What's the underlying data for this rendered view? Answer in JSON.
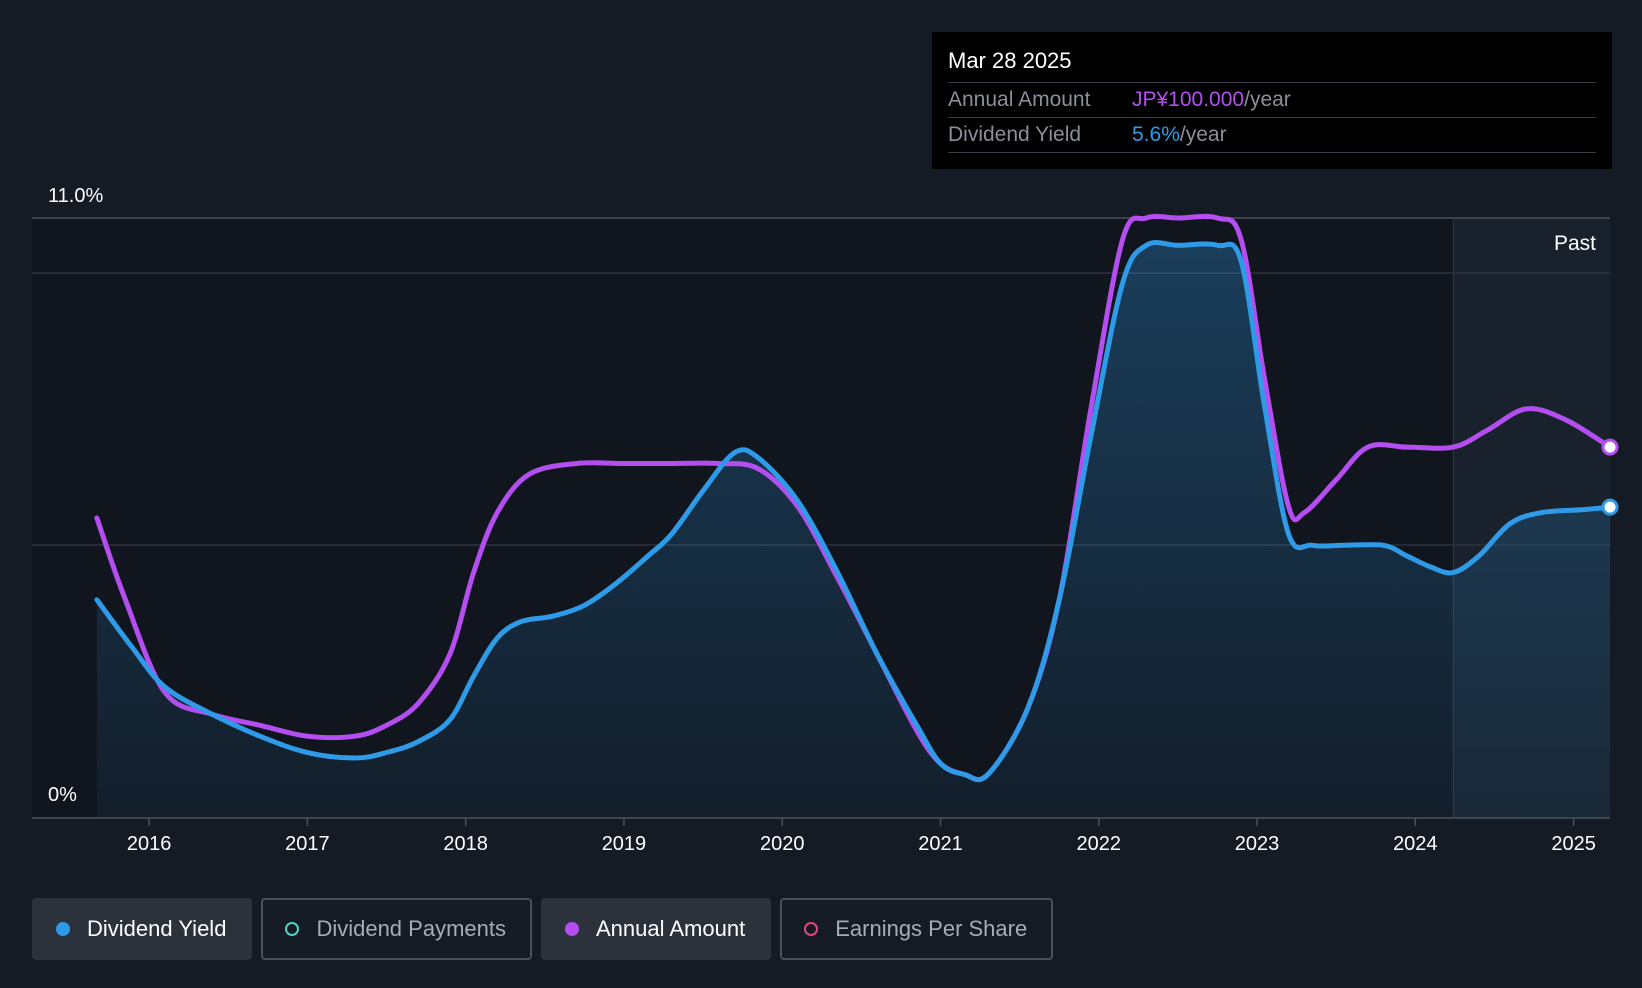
{
  "tooltip": {
    "date": "Mar 28 2025",
    "annual_label": "Annual Amount",
    "annual_value": "JP¥100.000",
    "annual_unit": "/year",
    "yield_label": "Dividend Yield",
    "yield_value": "5.6%",
    "yield_unit": "/year"
  },
  "legend": [
    {
      "label": "Dividend Yield",
      "color": "#2f9ae8",
      "active": true,
      "filled": true
    },
    {
      "label": "Dividend Payments",
      "color": "#4fd1c5",
      "active": false,
      "filled": false
    },
    {
      "label": "Annual Amount",
      "color": "#b44ef0",
      "active": true,
      "filled": true
    },
    {
      "label": "Earnings Per Share",
      "color": "#e0457b",
      "active": false,
      "filled": false
    }
  ],
  "chart_data": {
    "type": "line",
    "y_tick_labels": [
      "11.0%",
      "0%"
    ],
    "ylim": [
      0,
      11.0
    ],
    "xlim": [
      2015.26,
      2025.23
    ],
    "x_tick_labels": [
      "2016",
      "2017",
      "2018",
      "2019",
      "2020",
      "2021",
      "2022",
      "2023",
      "2024",
      "2025"
    ],
    "past_label": "Past",
    "past_start": 2024.24,
    "series": [
      {
        "name": "Dividend Yield",
        "color": "#2f9ae8",
        "points": [
          [
            2015.67,
            4.0
          ],
          [
            2015.9,
            3.1
          ],
          [
            2016.1,
            2.4
          ],
          [
            2016.4,
            1.9
          ],
          [
            2016.7,
            1.5
          ],
          [
            2017.0,
            1.2
          ],
          [
            2017.3,
            1.1
          ],
          [
            2017.5,
            1.2
          ],
          [
            2017.7,
            1.4
          ],
          [
            2017.9,
            1.8
          ],
          [
            2018.05,
            2.6
          ],
          [
            2018.2,
            3.3
          ],
          [
            2018.35,
            3.6
          ],
          [
            2018.55,
            3.7
          ],
          [
            2018.75,
            3.9
          ],
          [
            2018.95,
            4.3
          ],
          [
            2019.15,
            4.8
          ],
          [
            2019.3,
            5.2
          ],
          [
            2019.5,
            6.0
          ],
          [
            2019.7,
            6.7
          ],
          [
            2019.85,
            6.6
          ],
          [
            2020.1,
            5.8
          ],
          [
            2020.35,
            4.5
          ],
          [
            2020.6,
            3.0
          ],
          [
            2020.85,
            1.7
          ],
          [
            2021.0,
            1.0
          ],
          [
            2021.15,
            0.8
          ],
          [
            2021.3,
            0.8
          ],
          [
            2021.55,
            2.0
          ],
          [
            2021.75,
            4.0
          ],
          [
            2021.95,
            7.0
          ],
          [
            2022.15,
            9.8
          ],
          [
            2022.3,
            10.5
          ],
          [
            2022.5,
            10.5
          ],
          [
            2022.75,
            10.5
          ],
          [
            2022.9,
            10.2
          ],
          [
            2023.05,
            7.5
          ],
          [
            2023.2,
            5.2
          ],
          [
            2023.35,
            5.0
          ],
          [
            2023.55,
            5.0
          ],
          [
            2023.8,
            5.0
          ],
          [
            2023.95,
            4.8
          ],
          [
            2024.1,
            4.6
          ],
          [
            2024.24,
            4.5
          ],
          [
            2024.4,
            4.8
          ],
          [
            2024.6,
            5.4
          ],
          [
            2024.8,
            5.6
          ],
          [
            2025.05,
            5.65
          ],
          [
            2025.23,
            5.7
          ]
        ]
      },
      {
        "name": "Annual Amount",
        "color": "#b44ef0",
        "points": [
          [
            2015.67,
            5.5
          ],
          [
            2015.85,
            4.0
          ],
          [
            2016.1,
            2.3
          ],
          [
            2016.4,
            1.9
          ],
          [
            2016.7,
            1.7
          ],
          [
            2017.0,
            1.5
          ],
          [
            2017.3,
            1.5
          ],
          [
            2017.5,
            1.7
          ],
          [
            2017.7,
            2.1
          ],
          [
            2017.9,
            3.0
          ],
          [
            2018.05,
            4.5
          ],
          [
            2018.2,
            5.6
          ],
          [
            2018.4,
            6.3
          ],
          [
            2018.7,
            6.5
          ],
          [
            2019.0,
            6.5
          ],
          [
            2019.3,
            6.5
          ],
          [
            2019.6,
            6.5
          ],
          [
            2019.85,
            6.4
          ],
          [
            2020.1,
            5.7
          ],
          [
            2020.35,
            4.4
          ],
          [
            2020.6,
            3.0
          ],
          [
            2020.85,
            1.6
          ],
          [
            2021.0,
            1.0
          ],
          [
            2021.15,
            0.8
          ],
          [
            2021.3,
            0.8
          ],
          [
            2021.55,
            2.0
          ],
          [
            2021.75,
            4.0
          ],
          [
            2021.95,
            7.5
          ],
          [
            2022.15,
            10.6
          ],
          [
            2022.3,
            11.0
          ],
          [
            2022.5,
            11.0
          ],
          [
            2022.75,
            11.0
          ],
          [
            2022.9,
            10.6
          ],
          [
            2023.05,
            8.0
          ],
          [
            2023.2,
            5.7
          ],
          [
            2023.3,
            5.6
          ],
          [
            2023.5,
            6.2
          ],
          [
            2023.7,
            6.8
          ],
          [
            2023.95,
            6.8
          ],
          [
            2024.24,
            6.8
          ],
          [
            2024.45,
            7.1
          ],
          [
            2024.7,
            7.5
          ],
          [
            2024.95,
            7.3
          ],
          [
            2025.23,
            6.8
          ]
        ]
      }
    ]
  }
}
